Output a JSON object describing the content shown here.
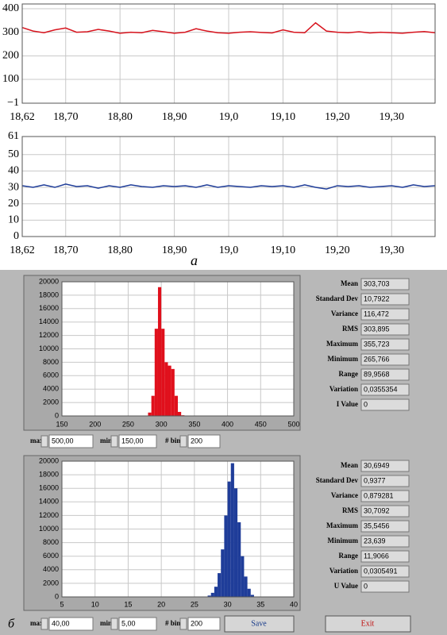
{
  "chart_data": [
    {
      "type": "line",
      "xlim": [
        18.62,
        19.38
      ],
      "ylim": [
        -1,
        420
      ],
      "xticks": [
        {
          "value": 18.62,
          "label": "18,62"
        },
        {
          "value": 18.7,
          "label": "18,70"
        },
        {
          "value": 18.8,
          "label": "18,80"
        },
        {
          "value": 18.9,
          "label": "18,90"
        },
        {
          "value": 19.0,
          "label": "19,0"
        },
        {
          "value": 19.1,
          "label": "19,10"
        },
        {
          "value": 19.2,
          "label": "19,20"
        },
        {
          "value": 19.3,
          "label": "19,30"
        }
      ],
      "yticks": [
        {
          "value": -1,
          "label": "−1"
        },
        100,
        200,
        300,
        400
      ],
      "grid": true,
      "x": [
        18.62,
        18.64,
        18.66,
        18.68,
        18.7,
        18.72,
        18.74,
        18.76,
        18.78,
        18.8,
        18.82,
        18.84,
        18.86,
        18.88,
        18.9,
        18.92,
        18.94,
        18.96,
        18.98,
        19.0,
        19.02,
        19.04,
        19.06,
        19.08,
        19.1,
        19.12,
        19.14,
        19.16,
        19.18,
        19.2,
        19.22,
        19.24,
        19.26,
        19.28,
        19.3,
        19.32,
        19.34,
        19.36,
        19.38
      ],
      "series": [
        {
          "color": "#d8141e",
          "values": [
            320,
            305,
            298,
            310,
            318,
            300,
            302,
            312,
            305,
            296,
            300,
            298,
            308,
            302,
            296,
            300,
            315,
            305,
            298,
            296,
            300,
            302,
            299,
            297,
            310,
            300,
            298,
            340,
            305,
            300,
            298,
            302,
            297,
            300,
            298,
            296,
            300,
            303,
            298
          ]
        }
      ]
    },
    {
      "type": "line",
      "xlim": [
        18.62,
        19.38
      ],
      "ylim": [
        0,
        61
      ],
      "xticks": [
        {
          "value": 18.62,
          "label": "18,62"
        },
        {
          "value": 18.7,
          "label": "18,70"
        },
        {
          "value": 18.8,
          "label": "18,80"
        },
        {
          "value": 18.9,
          "label": "18,90"
        },
        {
          "value": 19.0,
          "label": "19,0"
        },
        {
          "value": 19.1,
          "label": "19,10"
        },
        {
          "value": 19.2,
          "label": "19,20"
        },
        {
          "value": 19.3,
          "label": "19,30"
        }
      ],
      "yticks": [
        0,
        10,
        20,
        30,
        40,
        50,
        61
      ],
      "grid": true,
      "x": [
        18.62,
        18.64,
        18.66,
        18.68,
        18.7,
        18.72,
        18.74,
        18.76,
        18.78,
        18.8,
        18.82,
        18.84,
        18.86,
        18.88,
        18.9,
        18.92,
        18.94,
        18.96,
        18.98,
        19.0,
        19.02,
        19.04,
        19.06,
        19.08,
        19.1,
        19.12,
        19.14,
        19.16,
        19.18,
        19.2,
        19.22,
        19.24,
        19.26,
        19.28,
        19.3,
        19.32,
        19.34,
        19.36,
        19.38
      ],
      "series": [
        {
          "color": "#1f3d99",
          "values": [
            31,
            30,
            31.5,
            30,
            32,
            30.5,
            31,
            29.5,
            31,
            30,
            31.5,
            30.5,
            30,
            31,
            30.5,
            31,
            30,
            31.5,
            30,
            31,
            30.5,
            30,
            31,
            30.5,
            31,
            30,
            31.5,
            30,
            29,
            31,
            30.5,
            31,
            30,
            30.5,
            31,
            30,
            31.5,
            30.5,
            31
          ]
        }
      ]
    },
    {
      "type": "histogram",
      "xlim": [
        150,
        500
      ],
      "ylim": [
        0,
        20000
      ],
      "xticks": [
        150,
        200,
        250,
        300,
        350,
        400,
        450,
        500
      ],
      "yticks": [
        0,
        2000,
        4000,
        6000,
        8000,
        10000,
        12000,
        14000,
        16000,
        18000,
        20000
      ],
      "grid": true,
      "color": "#e0101c",
      "bins": [
        280,
        285,
        290,
        295,
        300,
        305,
        310,
        315,
        320,
        325,
        330,
        335
      ],
      "values": [
        500,
        3000,
        13000,
        19200,
        13000,
        8000,
        7500,
        7000,
        3000,
        600,
        100
      ]
    },
    {
      "type": "histogram",
      "xlim": [
        5,
        40
      ],
      "ylim": [
        0,
        20000
      ],
      "xticks": [
        5,
        10,
        15,
        20,
        25,
        30,
        35,
        40
      ],
      "yticks": [
        0,
        2000,
        4000,
        6000,
        8000,
        10000,
        12000,
        14000,
        16000,
        18000,
        20000
      ],
      "grid": true,
      "color": "#1f3d99",
      "bins": [
        27,
        27.5,
        28,
        28.5,
        29,
        29.5,
        30,
        30.5,
        31,
        31.5,
        32,
        32.5,
        33,
        33.5,
        34
      ],
      "values": [
        200,
        600,
        1500,
        3500,
        7000,
        12000,
        17000,
        19700,
        16000,
        11000,
        6000,
        3000,
        1200,
        300
      ]
    }
  ],
  "panel_labels": [
    "а",
    "б"
  ],
  "stats": [
    [
      {
        "label": "Mean",
        "value": "303,703"
      },
      {
        "label": "Standard Dev",
        "value": "10,7922"
      },
      {
        "label": "Variance",
        "value": "116,472"
      },
      {
        "label": "RMS",
        "value": "303,895"
      },
      {
        "label": "Maximum",
        "value": "355,723"
      },
      {
        "label": "Minimum",
        "value": "265,766"
      },
      {
        "label": "Range",
        "value": "89,9568"
      },
      {
        "label": "Variation",
        "value": "0,0355354"
      },
      {
        "label": "I Value",
        "value": "0"
      }
    ],
    [
      {
        "label": "Mean",
        "value": "30,6949"
      },
      {
        "label": "Standard Dev",
        "value": "0,9377"
      },
      {
        "label": "Variance",
        "value": "0,879281"
      },
      {
        "label": "RMS",
        "value": "30,7092"
      },
      {
        "label": "Maximum",
        "value": "35,5456"
      },
      {
        "label": "Minimum",
        "value": "23,639"
      },
      {
        "label": "Range",
        "value": "11,9066"
      },
      {
        "label": "Variation",
        "value": "0,0305491"
      },
      {
        "label": "U Value",
        "value": "0"
      }
    ]
  ],
  "controls": [
    {
      "max_label": "max",
      "max": "500,00",
      "min_label": "min",
      "min": "150,00",
      "bins_label": "# bins",
      "bins": "200"
    },
    {
      "max_label": "max",
      "max": "40,00",
      "min_label": "min",
      "min": "5,00",
      "bins_label": "# bins",
      "bins": "200"
    }
  ],
  "buttons": {
    "save": "Save",
    "exit": "Exit"
  }
}
